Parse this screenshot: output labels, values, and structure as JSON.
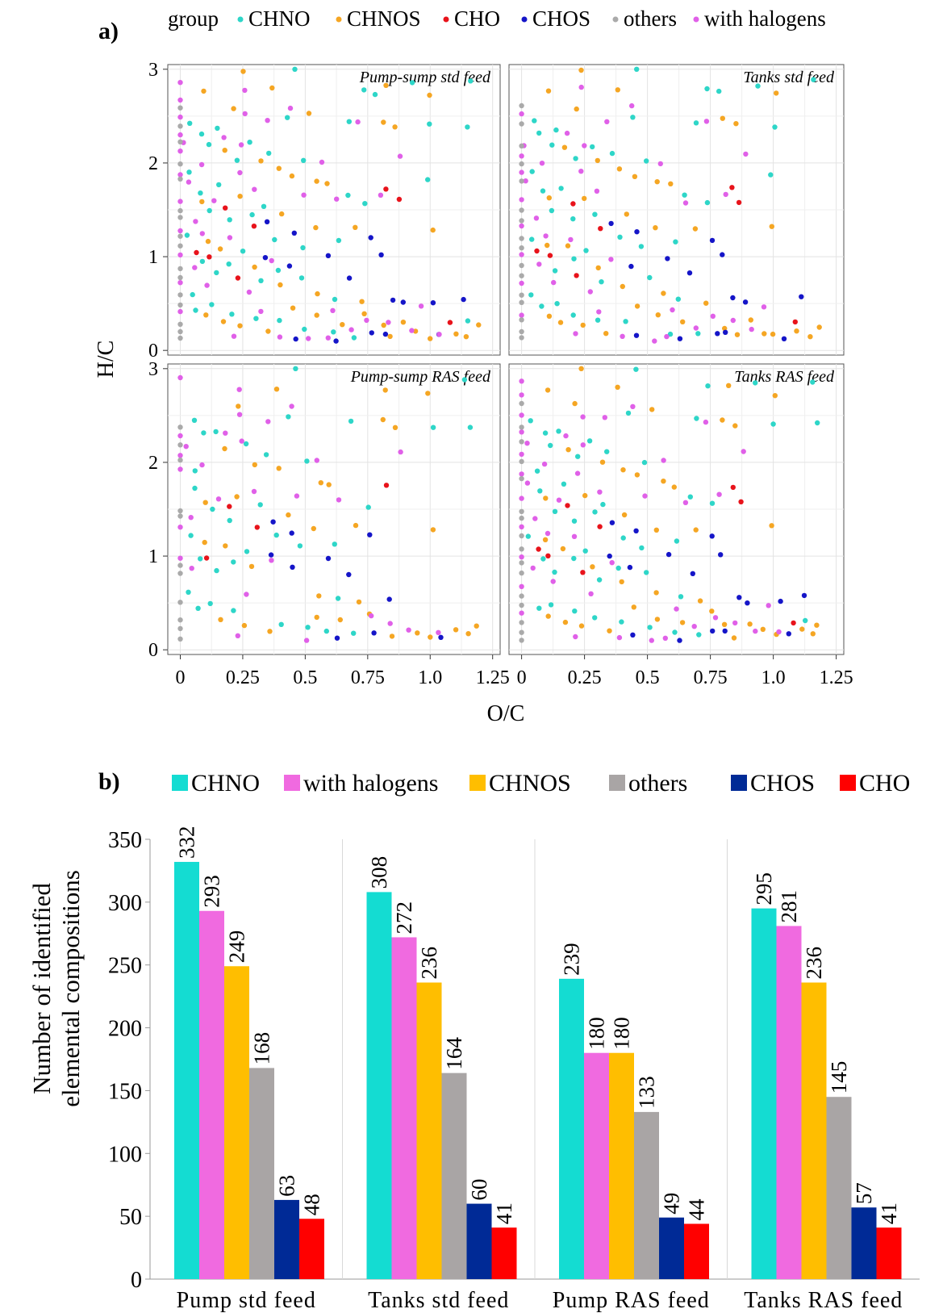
{
  "panel_a_label": "a)",
  "panel_b_label": "b)",
  "chart_data": [
    {
      "type": "scatter",
      "panel": "a)",
      "xlabel": "O/C",
      "ylabel": "H/C",
      "xlim": [
        -0.05,
        1.28
      ],
      "ylim": [
        -0.05,
        3.05
      ],
      "x_ticks": [
        "0",
        "0.25",
        "0.5",
        "0.75",
        "1.0",
        "1.25"
      ],
      "x_tick_values": [
        0,
        0.25,
        0.5,
        0.75,
        1.0,
        1.25
      ],
      "y_ticks": [
        "0",
        "1",
        "2",
        "3"
      ],
      "y_tick_values": [
        0,
        1,
        2,
        3
      ],
      "grid": true,
      "legend_title": "group",
      "legend_position": "top",
      "groups": [
        {
          "name": "CHNO",
          "color": "#2ed6c8"
        },
        {
          "name": "CHNOS",
          "color": "#f5a623"
        },
        {
          "name": "CHO",
          "color": "#e8131b"
        },
        {
          "name": "CHOS",
          "color": "#1515c8"
        },
        {
          "name": "others",
          "color": "#aaaaaa"
        },
        {
          "name": "with halogens",
          "color": "#e060e8"
        }
      ],
      "facets": [
        {
          "title": "Pump-sump std feed"
        },
        {
          "title": "Tanks std feed"
        },
        {
          "title": "Pump-sump RAS feed"
        },
        {
          "title": "Tanks RAS feed"
        }
      ],
      "points": [
        {
          "g": "CHNOS",
          "x": 0.25,
          "y": 3.0
        },
        {
          "g": "CHNO",
          "x": 0.46,
          "y": 3.0
        },
        {
          "g": "CHNO",
          "x": 1.15,
          "y": 2.87
        },
        {
          "g": "CHNOS",
          "x": 0.1,
          "y": 2.75
        },
        {
          "g": "CHNOS",
          "x": 0.38,
          "y": 2.8
        },
        {
          "g": "CHNO",
          "x": 0.73,
          "y": 2.8
        },
        {
          "g": "CHNO",
          "x": 0.78,
          "y": 2.75
        },
        {
          "g": "CHNOS",
          "x": 0.81,
          "y": 2.8
        },
        {
          "g": "CHNO",
          "x": 0.93,
          "y": 2.83
        },
        {
          "g": "CHNOS",
          "x": 1.0,
          "y": 2.72
        },
        {
          "g": "CHNOS",
          "x": 0.22,
          "y": 2.6
        },
        {
          "g": "CHNO",
          "x": 0.43,
          "y": 2.5
        },
        {
          "g": "CHNOS",
          "x": 0.52,
          "y": 2.55
        },
        {
          "g": "CHNO",
          "x": 0.68,
          "y": 2.45
        },
        {
          "g": "CHNOS",
          "x": 0.8,
          "y": 2.45
        },
        {
          "g": "CHNOS",
          "x": 0.86,
          "y": 2.4
        },
        {
          "g": "CHNO",
          "x": 1.0,
          "y": 2.4
        },
        {
          "g": "CHNO",
          "x": 1.16,
          "y": 2.4
        },
        {
          "g": "CHNO",
          "x": 0.05,
          "y": 2.45
        },
        {
          "g": "CHNO",
          "x": 0.08,
          "y": 2.3
        },
        {
          "g": "CHNO",
          "x": 0.12,
          "y": 2.2
        },
        {
          "g": "CHNO",
          "x": 0.15,
          "y": 2.35
        },
        {
          "g": "CHNOS",
          "x": 0.18,
          "y": 2.15
        },
        {
          "g": "CHNO",
          "x": 0.22,
          "y": 2.05
        },
        {
          "g": "CHNO",
          "x": 0.27,
          "y": 2.2
        },
        {
          "g": "CHNOS",
          "x": 0.31,
          "y": 2.0
        },
        {
          "g": "CHNO",
          "x": 0.35,
          "y": 2.1
        },
        {
          "g": "CHNOS",
          "x": 0.4,
          "y": 1.95
        },
        {
          "g": "CHNOS",
          "x": 0.45,
          "y": 1.85
        },
        {
          "g": "CHNO",
          "x": 0.5,
          "y": 2.0
        },
        {
          "g": "CHNOS",
          "x": 0.55,
          "y": 1.8
        },
        {
          "g": "CHNOS",
          "x": 0.6,
          "y": 1.75
        },
        {
          "g": "CHNO",
          "x": 0.66,
          "y": 1.65
        },
        {
          "g": "CHNO",
          "x": 0.75,
          "y": 1.55
        },
        {
          "g": "CHO",
          "x": 0.83,
          "y": 1.75
        },
        {
          "g": "CHO",
          "x": 0.87,
          "y": 1.6
        },
        {
          "g": "CHNOS",
          "x": 1.0,
          "y": 1.3
        },
        {
          "g": "CHNO",
          "x": 1.0,
          "y": 1.85
        },
        {
          "g": "CHNO",
          "x": 0.05,
          "y": 1.9
        },
        {
          "g": "CHNO",
          "x": 0.07,
          "y": 1.7
        },
        {
          "g": "CHNOS",
          "x": 0.1,
          "y": 1.6
        },
        {
          "g": "CHNO",
          "x": 0.13,
          "y": 1.5
        },
        {
          "g": "CHNO",
          "x": 0.16,
          "y": 1.75
        },
        {
          "g": "CHO",
          "x": 0.19,
          "y": 1.55
        },
        {
          "g": "CHNO",
          "x": 0.21,
          "y": 1.4
        },
        {
          "g": "CHNOS",
          "x": 0.24,
          "y": 1.65
        },
        {
          "g": "CHNO",
          "x": 0.28,
          "y": 1.45
        },
        {
          "g": "CHO",
          "x": 0.3,
          "y": 1.3
        },
        {
          "g": "CHNO",
          "x": 0.33,
          "y": 1.55
        },
        {
          "g": "CHOS",
          "x": 0.36,
          "y": 1.35
        },
        {
          "g": "CHNO",
          "x": 0.39,
          "y": 1.2
        },
        {
          "g": "CHNOS",
          "x": 0.42,
          "y": 1.45
        },
        {
          "g": "CHOS",
          "x": 0.46,
          "y": 1.25
        },
        {
          "g": "CHNO",
          "x": 0.49,
          "y": 1.1
        },
        {
          "g": "CHNOS",
          "x": 0.53,
          "y": 1.3
        },
        {
          "g": "CHOS",
          "x": 0.58,
          "y": 1.0
        },
        {
          "g": "CHNO",
          "x": 0.62,
          "y": 1.15
        },
        {
          "g": "CHNOS",
          "x": 0.7,
          "y": 1.3
        },
        {
          "g": "CHOS",
          "x": 0.75,
          "y": 1.2
        },
        {
          "g": "CHOS",
          "x": 0.8,
          "y": 1.0
        },
        {
          "g": "CHNO",
          "x": 0.04,
          "y": 1.2
        },
        {
          "g": "CHO",
          "x": 0.06,
          "y": 1.05
        },
        {
          "g": "CHNO",
          "x": 0.08,
          "y": 0.95
        },
        {
          "g": "CHNOS",
          "x": 0.1,
          "y": 1.15
        },
        {
          "g": "CHO",
          "x": 0.12,
          "y": 1.0
        },
        {
          "g": "CHNO",
          "x": 0.14,
          "y": 0.85
        },
        {
          "g": "CHNOS",
          "x": 0.17,
          "y": 1.1
        },
        {
          "g": "CHNO",
          "x": 0.2,
          "y": 0.95
        },
        {
          "g": "CHO",
          "x": 0.23,
          "y": 0.8
        },
        {
          "g": "CHNO",
          "x": 0.26,
          "y": 1.05
        },
        {
          "g": "CHNOS",
          "x": 0.29,
          "y": 0.9
        },
        {
          "g": "CHNO",
          "x": 0.32,
          "y": 0.75
        },
        {
          "g": "CHOS",
          "x": 0.35,
          "y": 1.0
        },
        {
          "g": "CHNO",
          "x": 0.38,
          "y": 0.85
        },
        {
          "g": "CHNOS",
          "x": 0.41,
          "y": 0.7
        },
        {
          "g": "CHOS",
          "x": 0.44,
          "y": 0.9
        },
        {
          "g": "CHNO",
          "x": 0.5,
          "y": 0.8
        },
        {
          "g": "CHNOS",
          "x": 0.55,
          "y": 0.6
        },
        {
          "g": "CHNO",
          "x": 0.63,
          "y": 0.55
        },
        {
          "g": "CHOS",
          "x": 0.68,
          "y": 0.8
        },
        {
          "g": "CHNOS",
          "x": 0.72,
          "y": 0.5
        },
        {
          "g": "CHOS",
          "x": 0.85,
          "y": 0.55
        },
        {
          "g": "CHOS",
          "x": 0.9,
          "y": 0.5
        },
        {
          "g": "CHOS",
          "x": 1.02,
          "y": 0.5
        },
        {
          "g": "CHOS",
          "x": 1.12,
          "y": 0.55
        },
        {
          "g": "CHNO",
          "x": 0.04,
          "y": 0.6
        },
        {
          "g": "CHNO",
          "x": 0.07,
          "y": 0.45
        },
        {
          "g": "CHNOS",
          "x": 0.1,
          "y": 0.35
        },
        {
          "g": "CHNO",
          "x": 0.13,
          "y": 0.5
        },
        {
          "g": "CHNOS",
          "x": 0.16,
          "y": 0.3
        },
        {
          "g": "CHNO",
          "x": 0.2,
          "y": 0.4
        },
        {
          "g": "CHNOS",
          "x": 0.25,
          "y": 0.25
        },
        {
          "g": "CHNO",
          "x": 0.3,
          "y": 0.35
        },
        {
          "g": "CHNOS",
          "x": 0.35,
          "y": 0.2
        },
        {
          "g": "CHNO",
          "x": 0.4,
          "y": 0.3
        },
        {
          "g": "CHNOS",
          "x": 0.45,
          "y": 0.45
        },
        {
          "g": "CHNO",
          "x": 0.5,
          "y": 0.25
        },
        {
          "g": "CHNOS",
          "x": 0.55,
          "y": 0.35
        },
        {
          "g": "CHNO",
          "x": 0.6,
          "y": 0.2
        },
        {
          "g": "CHNOS",
          "x": 0.65,
          "y": 0.3
        },
        {
          "g": "CHNO",
          "x": 0.7,
          "y": 0.15
        },
        {
          "g": "CHNOS",
          "x": 0.75,
          "y": 0.4
        },
        {
          "g": "CHNOS",
          "x": 0.8,
          "y": 0.25
        },
        {
          "g": "CHOS",
          "x": 0.82,
          "y": 0.2
        },
        {
          "g": "CHNOS",
          "x": 0.85,
          "y": 0.15
        },
        {
          "g": "CHNOS",
          "x": 0.9,
          "y": 0.3
        },
        {
          "g": "CHNOS",
          "x": 0.95,
          "y": 0.2
        },
        {
          "g": "CHNOS",
          "x": 1.0,
          "y": 0.15
        },
        {
          "g": "CHO",
          "x": 1.08,
          "y": 0.3
        },
        {
          "g": "CHNOS",
          "x": 1.1,
          "y": 0.2
        },
        {
          "g": "CHNOS",
          "x": 1.15,
          "y": 0.15
        },
        {
          "g": "CHNOS",
          "x": 1.18,
          "y": 0.25
        },
        {
          "g": "CHOS",
          "x": 1.05,
          "y": 0.15
        },
        {
          "g": "CHNO",
          "x": 1.14,
          "y": 0.3
        },
        {
          "g": "CHOS",
          "x": 0.45,
          "y": 0.15
        },
        {
          "g": "CHOS",
          "x": 0.62,
          "y": 0.12
        },
        {
          "g": "CHOS",
          "x": 0.77,
          "y": 0.2
        },
        {
          "g": "with halogens",
          "x": 0.0,
          "y": 2.88
        },
        {
          "g": "with halogens",
          "x": 0.0,
          "y": 2.7
        },
        {
          "g": "with halogens",
          "x": 0.0,
          "y": 2.5
        },
        {
          "g": "with halogens",
          "x": 0.0,
          "y": 2.3
        },
        {
          "g": "with halogens",
          "x": 0.0,
          "y": 2.1
        },
        {
          "g": "with halogens",
          "x": 0.0,
          "y": 1.9
        },
        {
          "g": "with halogens",
          "x": 0.0,
          "y": 1.6
        },
        {
          "g": "with halogens",
          "x": 0.0,
          "y": 1.3
        },
        {
          "g": "with halogens",
          "x": 0.0,
          "y": 1.0
        },
        {
          "g": "with halogens",
          "x": 0.0,
          "y": 0.7
        },
        {
          "g": "with halogens",
          "x": 0.0,
          "y": 0.4
        },
        {
          "g": "with halogens",
          "x": 0.02,
          "y": 2.2
        },
        {
          "g": "with halogens",
          "x": 0.03,
          "y": 1.8
        },
        {
          "g": "with halogens",
          "x": 0.05,
          "y": 1.4
        },
        {
          "g": "with halogens",
          "x": 0.06,
          "y": 0.9
        },
        {
          "g": "with halogens",
          "x": 0.08,
          "y": 2.0
        },
        {
          "g": "with halogens",
          "x": 0.1,
          "y": 1.25
        },
        {
          "g": "with halogens",
          "x": 0.12,
          "y": 0.7
        },
        {
          "g": "with halogens",
          "x": 0.15,
          "y": 1.6
        },
        {
          "g": "with halogens",
          "x": 0.18,
          "y": 2.3
        },
        {
          "g": "with halogens",
          "x": 0.2,
          "y": 1.2
        },
        {
          "g": "with halogens",
          "x": 0.23,
          "y": 1.9
        },
        {
          "g": "with halogens",
          "x": 0.25,
          "y": 2.8
        },
        {
          "g": "with halogens",
          "x": 0.25,
          "y": 2.5
        },
        {
          "g": "with halogens",
          "x": 0.25,
          "y": 2.2
        },
        {
          "g": "with halogens",
          "x": 0.27,
          "y": 0.6
        },
        {
          "g": "with halogens",
          "x": 0.3,
          "y": 1.7
        },
        {
          "g": "with halogens",
          "x": 0.34,
          "y": 2.45
        },
        {
          "g": "with halogens",
          "x": 0.37,
          "y": 0.95
        },
        {
          "g": "with halogens",
          "x": 0.4,
          "y": 0.15
        },
        {
          "g": "with halogens",
          "x": 0.44,
          "y": 2.6
        },
        {
          "g": "with halogens",
          "x": 0.48,
          "y": 1.65
        },
        {
          "g": "with halogens",
          "x": 0.52,
          "y": 0.1
        },
        {
          "g": "with halogens",
          "x": 0.56,
          "y": 2.0
        },
        {
          "g": "with halogens",
          "x": 0.6,
          "y": 0.45
        },
        {
          "g": "with halogens",
          "x": 0.64,
          "y": 1.6
        },
        {
          "g": "with halogens",
          "x": 0.68,
          "y": 0.25
        },
        {
          "g": "with halogens",
          "x": 0.72,
          "y": 2.45
        },
        {
          "g": "with halogens",
          "x": 0.76,
          "y": 0.35
        },
        {
          "g": "with halogens",
          "x": 0.8,
          "y": 1.65
        },
        {
          "g": "with halogens",
          "x": 0.84,
          "y": 0.3
        },
        {
          "g": "with halogens",
          "x": 0.88,
          "y": 2.1
        },
        {
          "g": "with halogens",
          "x": 0.92,
          "y": 0.2
        },
        {
          "g": "with halogens",
          "x": 0.97,
          "y": 0.45
        },
        {
          "g": "with halogens",
          "x": 1.03,
          "y": 0.2
        },
        {
          "g": "with halogens",
          "x": 0.22,
          "y": 0.15
        },
        {
          "g": "with halogens",
          "x": 0.32,
          "y": 0.4
        },
        {
          "g": "with halogens",
          "x": 0.58,
          "y": 0.15
        },
        {
          "g": "others",
          "x": 0.0,
          "y": 2.6
        },
        {
          "g": "others",
          "x": 0.0,
          "y": 2.4
        },
        {
          "g": "others",
          "x": 0.0,
          "y": 2.2
        },
        {
          "g": "others",
          "x": 0.0,
          "y": 2.0
        },
        {
          "g": "others",
          "x": 0.0,
          "y": 1.8
        },
        {
          "g": "others",
          "x": 0.0,
          "y": 1.5
        },
        {
          "g": "others",
          "x": 0.0,
          "y": 1.4
        },
        {
          "g": "others",
          "x": 0.0,
          "y": 1.2
        },
        {
          "g": "others",
          "x": 0.0,
          "y": 1.1
        },
        {
          "g": "others",
          "x": 0.0,
          "y": 0.9
        },
        {
          "g": "others",
          "x": 0.0,
          "y": 0.8
        },
        {
          "g": "others",
          "x": 0.0,
          "y": 0.6
        },
        {
          "g": "others",
          "x": 0.0,
          "y": 0.5
        },
        {
          "g": "others",
          "x": 0.0,
          "y": 0.3
        },
        {
          "g": "others",
          "x": 0.0,
          "y": 0.2
        },
        {
          "g": "others",
          "x": 0.0,
          "y": 0.12
        }
      ]
    },
    {
      "type": "bar",
      "panel": "b)",
      "ylabel": "Number of identified elemental compositions",
      "ylim": [
        0,
        350
      ],
      "y_ticks": [
        0,
        50,
        100,
        150,
        200,
        250,
        300,
        350
      ],
      "categories": [
        "Pump std feed",
        "Tanks std feed",
        "Pump RAS feed",
        "Tanks RAS feed"
      ],
      "legend_position": "top",
      "series": [
        {
          "name": "CHNO",
          "color": "#14dcd2",
          "values": [
            332,
            308,
            239,
            295
          ]
        },
        {
          "name": "with halogens",
          "color": "#f06ae0",
          "values": [
            293,
            272,
            180,
            281
          ]
        },
        {
          "name": "CHNOS",
          "color": "#ffbe00",
          "values": [
            249,
            236,
            180,
            236
          ]
        },
        {
          "name": "others",
          "color": "#a9a5a5",
          "values": [
            168,
            164,
            133,
            145
          ]
        },
        {
          "name": "CHOS",
          "color": "#002a96",
          "values": [
            63,
            60,
            49,
            57
          ]
        },
        {
          "name": "CHO",
          "color": "#ff0000",
          "values": [
            48,
            41,
            44,
            41
          ]
        }
      ]
    }
  ]
}
